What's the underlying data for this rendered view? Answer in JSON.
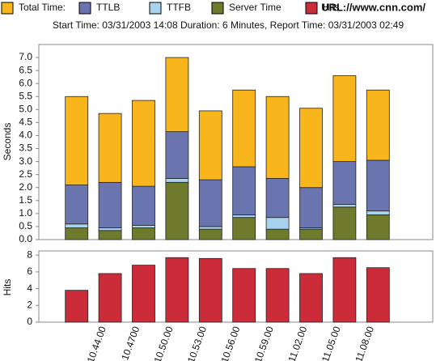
{
  "chart_data": [
    {
      "type": "stacked_bar",
      "subtitle": "Start Time: 03/31/2003 14:08 Duration: 6 Minutes, Report Time: 03/31/2003 02:49",
      "url": "URL://www.cnn.com/",
      "y_label": "Seconds",
      "categories": [
        null,
        "10.44.00",
        "10.4700",
        "10.50.00",
        "10.53.00",
        "10.56.00",
        "10.59.00",
        "11.02.00",
        "11.05.00",
        "11.08.00"
      ],
      "series": [
        {
          "name": "Server Time",
          "color": "#6f7a2d",
          "values": [
            0.45,
            0.35,
            0.45,
            2.2,
            0.4,
            0.85,
            0.4,
            0.4,
            1.25,
            0.95
          ]
        },
        {
          "name": "TTFB",
          "color": "#a7d3ec",
          "values": [
            0.15,
            0.1,
            0.1,
            0.15,
            0.1,
            0.1,
            0.45,
            0.05,
            0.1,
            0.15
          ]
        },
        {
          "name": "TTLB",
          "color": "#6a75b0",
          "values": [
            1.5,
            1.75,
            1.5,
            1.8,
            1.8,
            1.85,
            1.5,
            1.55,
            1.65,
            1.95
          ]
        },
        {
          "name": "Total Time:",
          "color": "#f9b51c",
          "values": [
            3.4,
            2.65,
            3.3,
            2.85,
            2.65,
            2.95,
            3.15,
            3.05,
            3.3,
            2.7
          ]
        }
      ],
      "ylim": [
        0,
        7.5
      ],
      "yticks": [
        {
          "value": 0,
          "label": "0.0"
        },
        {
          "value": 0.5,
          "label": "0.5"
        },
        {
          "value": 1,
          "label": "1.0"
        },
        {
          "value": 1.5,
          "label": "1.5"
        },
        {
          "value": 2,
          "label": "2.0"
        },
        {
          "value": 2.5,
          "label": "2.5"
        },
        {
          "value": 3,
          "label": "3.0"
        },
        {
          "value": 3.5,
          "label": "3.5"
        },
        {
          "value": 4,
          "label": "4.0"
        },
        {
          "value": 4.5,
          "label": "4.5"
        },
        {
          "value": 5,
          "label": "5.0"
        },
        {
          "value": 5.5,
          "label": "5.5"
        },
        {
          "value": 6,
          "label": "6.0"
        },
        {
          "value": 6.5,
          "label": "6.5"
        },
        {
          "value": 7,
          "label": "7.0"
        }
      ]
    },
    {
      "type": "bar",
      "y_label": "Hits",
      "series": [
        {
          "name": "Hits",
          "color": "#cc2b3a",
          "values": [
            3.8,
            5.8,
            6.8,
            7.7,
            7.6,
            6.4,
            6.4,
            5.8,
            7.7,
            6.5
          ]
        }
      ],
      "ylim": [
        0,
        8.5
      ],
      "yticks": [
        0,
        2,
        4,
        6,
        8
      ]
    }
  ]
}
